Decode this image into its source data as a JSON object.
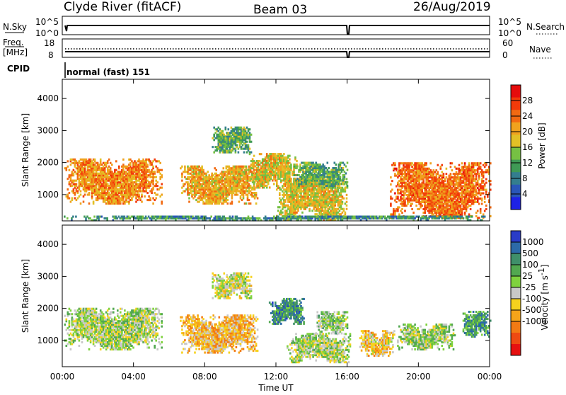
{
  "header": {
    "station": "Clyde River (fitACF)",
    "beam": "Beam 03",
    "date": "26/Aug/2019"
  },
  "strips": {
    "nsky_label": "N.Sky",
    "nsky_ticks": [
      "10^5",
      "10^0"
    ],
    "nsearch_label": "N.Search",
    "nsearch_ticks": [
      "10^5",
      "10^0"
    ],
    "freq_label": "Freq.",
    "freq_unit": "[MHz]",
    "freq_ticks": [
      "18",
      "8"
    ],
    "nave_label": "Nave",
    "nave_ticks": [
      "60",
      "0"
    ],
    "cpid_label": "CPID",
    "cpid_value": "normal (fast) 151"
  },
  "chart_data": [
    {
      "type": "heatmap",
      "panel": "power",
      "ylabel": "Slant Range [km]",
      "yticks": [
        "1000",
        "2000",
        "3000",
        "4000"
      ],
      "ylim": [
        180,
        4600
      ],
      "xlim": [
        0,
        24
      ],
      "colorbar": {
        "label": "Power [dB]",
        "ticks": [
          "4",
          "8",
          "12",
          "16",
          "20",
          "24",
          "28"
        ],
        "range": [
          0,
          32
        ],
        "colors": [
          "#1e22e6",
          "#2a56b8",
          "#347e8e",
          "#3f9a55",
          "#76c043",
          "#e2c026",
          "#f0a21e",
          "#f26a12",
          "#f23a0a",
          "#e60c0c"
        ]
      },
      "regions": [
        {
          "t": [
            0.1,
            5.6
          ],
          "r": [
            700,
            2100
          ],
          "level": 22
        },
        {
          "t": [
            6.6,
            11.0
          ],
          "r": [
            700,
            1900
          ],
          "level": 20
        },
        {
          "t": [
            8.4,
            10.6
          ],
          "r": [
            2300,
            3100
          ],
          "level": 12
        },
        {
          "t": [
            10.4,
            13.2
          ],
          "r": [
            1200,
            2300
          ],
          "level": 18
        },
        {
          "t": [
            12.0,
            16.0
          ],
          "r": [
            200,
            1500
          ],
          "level": 18
        },
        {
          "t": [
            13.0,
            16.0
          ],
          "r": [
            1200,
            2000
          ],
          "level": 12
        },
        {
          "t": [
            18.4,
            24.0
          ],
          "r": [
            250,
            2000
          ],
          "level": 24
        },
        {
          "t": [
            0.0,
            24.0
          ],
          "r": [
            180,
            320
          ],
          "level": 10
        }
      ]
    },
    {
      "type": "heatmap",
      "panel": "velocity",
      "ylabel": "Slant Range [km]",
      "yticks": [
        "1000",
        "2000",
        "3000",
        "4000"
      ],
      "ylim": [
        180,
        4600
      ],
      "xlim": [
        0,
        24
      ],
      "xticks": [
        "00:00",
        "04:00",
        "08:00",
        "12:00",
        "16:00",
        "20:00",
        "00:00"
      ],
      "xlabel": "Time UT",
      "colorbar": {
        "label": "Velocity [m s",
        "label_sup": "-1",
        "label_end": "]",
        "ticks": [
          "1000",
          "500",
          "100",
          "25",
          "-25",
          "-100",
          "-500",
          "-1000"
        ],
        "range": [
          -1500,
          1500
        ],
        "colors": [
          "#2a3cc8",
          "#2c6aa8",
          "#3f8f6a",
          "#52a850",
          "#7fd23e",
          "#c8c8c8",
          "#f6d21e",
          "#f6a41a",
          "#f27a14",
          "#ee4a12",
          "#e61010"
        ]
      },
      "regions": [
        {
          "t": [
            0.1,
            5.6
          ],
          "r": [
            700,
            2000
          ],
          "level": 150
        },
        {
          "t": [
            6.6,
            11.0
          ],
          "r": [
            600,
            1800
          ],
          "level": -400
        },
        {
          "t": [
            8.4,
            10.6
          ],
          "r": [
            2300,
            3100
          ],
          "level": 0
        },
        {
          "t": [
            11.6,
            13.6
          ],
          "r": [
            1500,
            2300
          ],
          "level": 800
        },
        {
          "t": [
            12.6,
            16.2
          ],
          "r": [
            300,
            1200
          ],
          "level": 150
        },
        {
          "t": [
            14.2,
            16.0
          ],
          "r": [
            1200,
            1900
          ],
          "level": 250
        },
        {
          "t": [
            16.6,
            18.6
          ],
          "r": [
            500,
            1300
          ],
          "level": -300
        },
        {
          "t": [
            18.8,
            22.0
          ],
          "r": [
            700,
            1500
          ],
          "level": 200
        },
        {
          "t": [
            22.4,
            24.0
          ],
          "r": [
            1100,
            1900
          ],
          "level": 700
        }
      ]
    }
  ]
}
